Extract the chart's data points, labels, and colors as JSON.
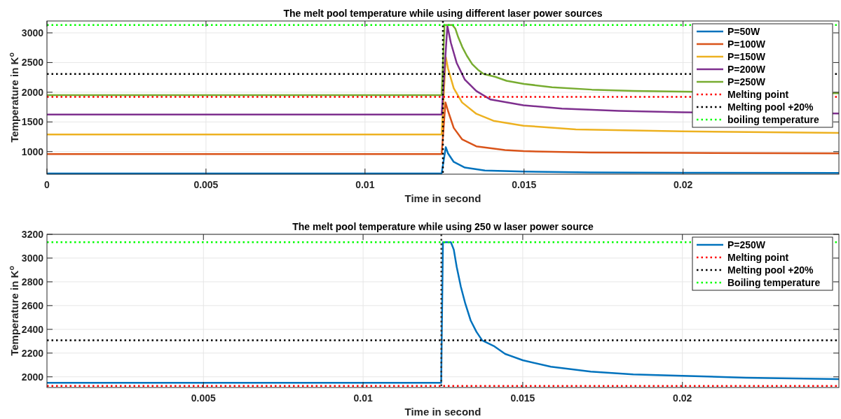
{
  "chart_data": [
    {
      "type": "line",
      "title": "The melt pool temperature while using different laser power sources",
      "xlabel": "Time in second",
      "ylabel": "Temperature in K$^{o}$",
      "xlim": [
        0,
        0.0249
      ],
      "xticks": [
        0,
        0.005,
        0.01,
        0.015,
        0.02
      ],
      "ylim": [
        620,
        3200
      ],
      "yticks": [
        1000,
        1500,
        2000,
        2500,
        3000
      ],
      "grid": true,
      "legend": "top right",
      "line_style": "solid",
      "series": [
        {
          "name": "P=50W",
          "color": "#0072bd",
          "x": [
            0,
            0.01241,
            0.01254,
            0.01261,
            0.01279,
            0.01314,
            0.01377,
            0.01498,
            0.01708,
            0.02,
            0.0249
          ],
          "values": [
            633,
            633,
            1075,
            970,
            827,
            731,
            683,
            664,
            650,
            645,
            640
          ]
        },
        {
          "name": "P=100W",
          "color": "#d95319",
          "x": [
            0,
            0.01241,
            0.01253,
            0.01261,
            0.01279,
            0.01305,
            0.0135,
            0.0144,
            0.01498,
            0.01708,
            0.02,
            0.0249
          ],
          "values": [
            960,
            960,
            1829,
            1686,
            1399,
            1208,
            1089,
            1027,
            1008,
            984,
            978,
            970
          ]
        },
        {
          "name": "P=150W",
          "color": "#edb120",
          "x": [
            0,
            0.01241,
            0.01254,
            0.01261,
            0.01279,
            0.01305,
            0.0135,
            0.01404,
            0.01498,
            0.01663,
            0.01996,
            0.0249
          ],
          "values": [
            1289,
            1289,
            2593,
            2401,
            2068,
            1829,
            1637,
            1519,
            1437,
            1375,
            1342,
            1314
          ]
        },
        {
          "name": "P=200W",
          "color": "#7e2f8e",
          "x": [
            0,
            0.01241,
            0.01259,
            0.0127,
            0.01288,
            0.01314,
            0.0135,
            0.01395,
            0.01498,
            0.01619,
            0.01798,
            0.01996,
            0.0249
          ],
          "values": [
            1623,
            1623,
            3118,
            2832,
            2497,
            2211,
            2020,
            1877,
            1781,
            1724,
            1686,
            1662,
            1643
          ]
        },
        {
          "name": "P=250W",
          "color": "#77ac30",
          "x": [
            0,
            0.01241,
            0.0125,
            0.01275,
            0.01284,
            0.01293,
            0.01306,
            0.0132,
            0.01337,
            0.01355,
            0.01373,
            0.01409,
            0.01445,
            0.015,
            0.01588,
            0.01713,
            0.01846,
            0.02,
            0.0249
          ],
          "values": [
            1950,
            1950,
            3133,
            3133,
            3071,
            2928,
            2760,
            2617,
            2474,
            2379,
            2307,
            2260,
            2193,
            2140,
            2085,
            2044,
            2021,
            2009,
            1985
          ]
        },
        {
          "name": "Melting point",
          "color": "#ff0000",
          "line_style": "dotted",
          "x": [
            0,
            0.0249
          ],
          "values": [
            1923,
            1923
          ]
        },
        {
          "name": "Melting pool +20%",
          "color": "#000000",
          "line_style": "dotted",
          "x": [
            0,
            0.0249
          ],
          "values": [
            2308,
            2308
          ]
        },
        {
          "name": "boiling temperature",
          "color": "#00ff00",
          "line_style": "dotted",
          "x": [
            0,
            0.0249
          ],
          "values": [
            3133,
            3133
          ]
        }
      ],
      "ref_lines": [
        {
          "axis": "x",
          "value": 0.01245,
          "color": "#000000",
          "line_style": "dotted"
        }
      ]
    },
    {
      "type": "line",
      "title": "The melt pool temperature while using 250 w laser power source",
      "xlabel": "Time in second",
      "ylabel": "Temperature in K$^{o}$",
      "xlim": [
        0.0001,
        0.0249
      ],
      "xticks": [
        0.005,
        0.01,
        0.015,
        0.02
      ],
      "ylim": [
        1910,
        3200
      ],
      "yticks": [
        2000,
        2200,
        2400,
        2600,
        2800,
        3000,
        3200
      ],
      "grid": true,
      "legend": "top right",
      "line_style": "solid",
      "series": [
        {
          "name": "P=250W",
          "color": "#0072bd",
          "x": [
            0.0001,
            0.012446,
            0.0125,
            0.01275,
            0.01284,
            0.01293,
            0.01306,
            0.0132,
            0.01337,
            0.01355,
            0.01373,
            0.01409,
            0.01445,
            0.015,
            0.01588,
            0.01713,
            0.01846,
            0.02,
            0.022,
            0.0249
          ],
          "values": [
            1950,
            1950,
            3133,
            3133,
            3071,
            2928,
            2760,
            2617,
            2474,
            2379,
            2307,
            2260,
            2193,
            2140,
            2085,
            2044,
            2021,
            2009,
            1992,
            1980
          ]
        },
        {
          "name": "Melting point",
          "color": "#ff0000",
          "line_style": "dotted",
          "x": [
            0.0001,
            0.0249
          ],
          "values": [
            1923,
            1923
          ]
        },
        {
          "name": "Melting pool +20%",
          "color": "#000000",
          "line_style": "dotted",
          "x": [
            0.0001,
            0.0249
          ],
          "values": [
            2308,
            2308
          ]
        },
        {
          "name": "Boiling temperature",
          "color": "#00ff00",
          "line_style": "dotted",
          "x": [
            0.0001,
            0.0249
          ],
          "values": [
            3133,
            3133
          ]
        }
      ],
      "ref_lines": [
        {
          "axis": "x",
          "value": 0.01245,
          "color": "#333333",
          "line_style": "dotted"
        }
      ]
    }
  ]
}
